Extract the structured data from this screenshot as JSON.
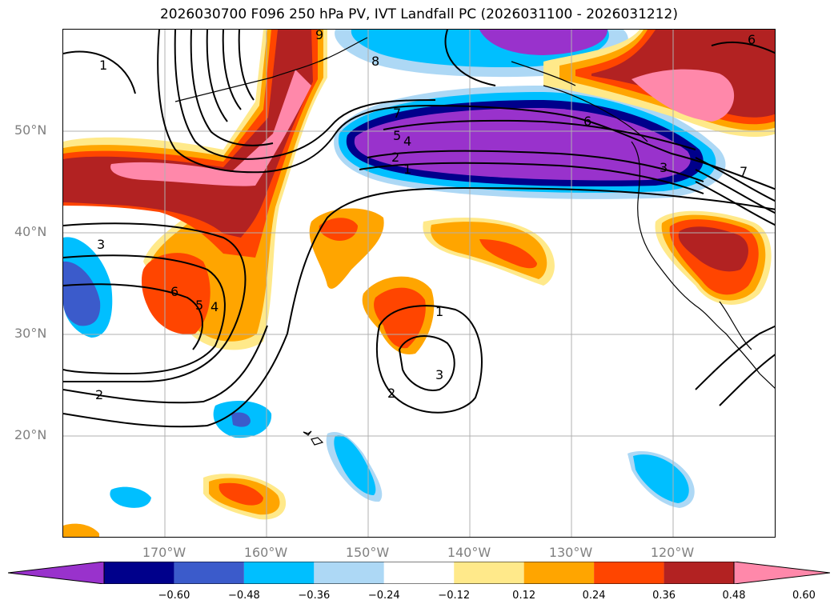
{
  "title": "2026030700 F096 250 hPa PV, IVT Landfall PC (2026031100 - 2026031212)",
  "lat_labels": [
    "50°N",
    "40°N",
    "30°N",
    "20°N"
  ],
  "lon_labels": [
    "170°W",
    "160°W",
    "150°W",
    "140°W",
    "130°W",
    "120°W"
  ],
  "colorbar": {
    "ticks": [
      "−0.60",
      "−0.48",
      "−0.36",
      "−0.24",
      "−0.12",
      "0.12",
      "0.24",
      "0.36",
      "0.48",
      "0.60"
    ],
    "colors": [
      "#9932cc",
      "#00008b",
      "#3b5bcb",
      "#00bfff",
      "#add8f5",
      "#ffffff",
      "#ffe98a",
      "#ffa500",
      "#ff4500",
      "#b22222",
      "#ff88aa"
    ]
  },
  "contour_labels": [
    "1",
    "1",
    "1",
    "2",
    "2",
    "2",
    "3",
    "3",
    "3",
    "4",
    "4",
    "5",
    "5",
    "6",
    "6",
    "6",
    "7",
    "7",
    "8",
    "9"
  ]
}
